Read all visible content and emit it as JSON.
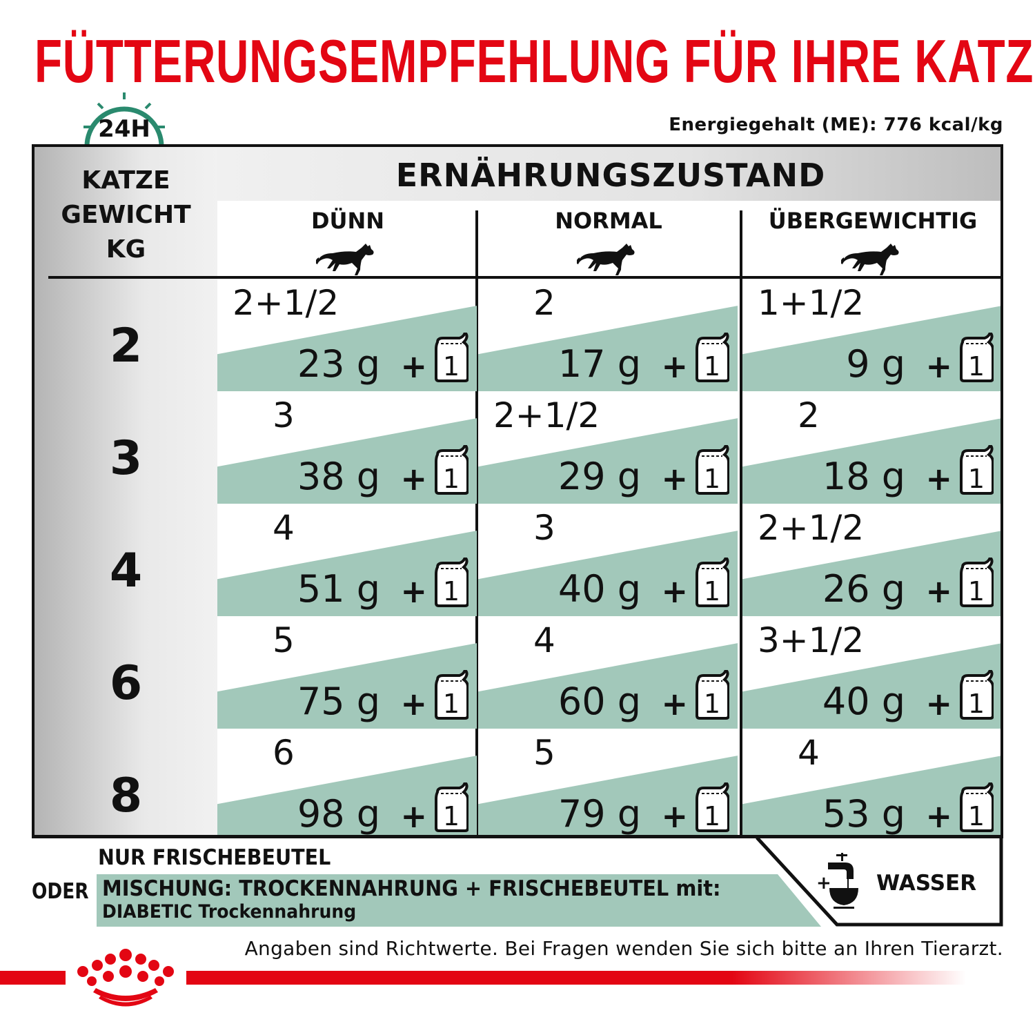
{
  "title": "FÜTTERUNGSEMPFEHLUNG FÜR IHRE KATZE",
  "clock_label": "24H",
  "energy": "Energiegehalt (ME): 776 kcal/kg",
  "table": {
    "header_title": "ERNÄHRUNGSZUSTAND",
    "weight_header": [
      "KATZE",
      "GEWICHT",
      "KG"
    ],
    "columns": [
      "DÜNN",
      "NORMAL",
      "ÜBERGEWICHTIG"
    ],
    "pouch_count": "1",
    "rows": [
      {
        "weight": "2",
        "cells": [
          {
            "portion": "2+1/2",
            "grams": "23 g"
          },
          {
            "portion": "2",
            "grams": "17 g"
          },
          {
            "portion": "1+1/2",
            "grams": "9 g"
          }
        ]
      },
      {
        "weight": "3",
        "cells": [
          {
            "portion": "3",
            "grams": "38 g"
          },
          {
            "portion": "2+1/2",
            "grams": "29 g"
          },
          {
            "portion": "2",
            "grams": "18 g"
          }
        ]
      },
      {
        "weight": "4",
        "cells": [
          {
            "portion": "4",
            "grams": "51 g"
          },
          {
            "portion": "3",
            "grams": "40 g"
          },
          {
            "portion": "2+1/2",
            "grams": "26 g"
          }
        ]
      },
      {
        "weight": "6",
        "cells": [
          {
            "portion": "5",
            "grams": "75 g"
          },
          {
            "portion": "4",
            "grams": "60 g"
          },
          {
            "portion": "3+1/2",
            "grams": "40 g"
          }
        ]
      },
      {
        "weight": "8",
        "cells": [
          {
            "portion": "6",
            "grams": "98 g"
          },
          {
            "portion": "5",
            "grams": "79 g"
          },
          {
            "portion": "4",
            "grams": "53 g"
          }
        ]
      }
    ]
  },
  "legend": {
    "fresh_only": "NUR FRISCHEBEUTEL",
    "or": "ODER",
    "mix_line1": "MISCHUNG: TROCKENNAHRUNG + FRISCHEBEUTEL mit:",
    "mix_line2": "DIABETIC Trockennahrung",
    "water_plus": "+",
    "water": "WASSER"
  },
  "note": "Angaben sind Richtwerte. Bei Fragen wenden Sie sich bitte an Ihren Tierarzt.",
  "colors": {
    "title_red": "#e30613",
    "teal": "#a2c8ba",
    "clock_green": "#2a8a6e"
  }
}
